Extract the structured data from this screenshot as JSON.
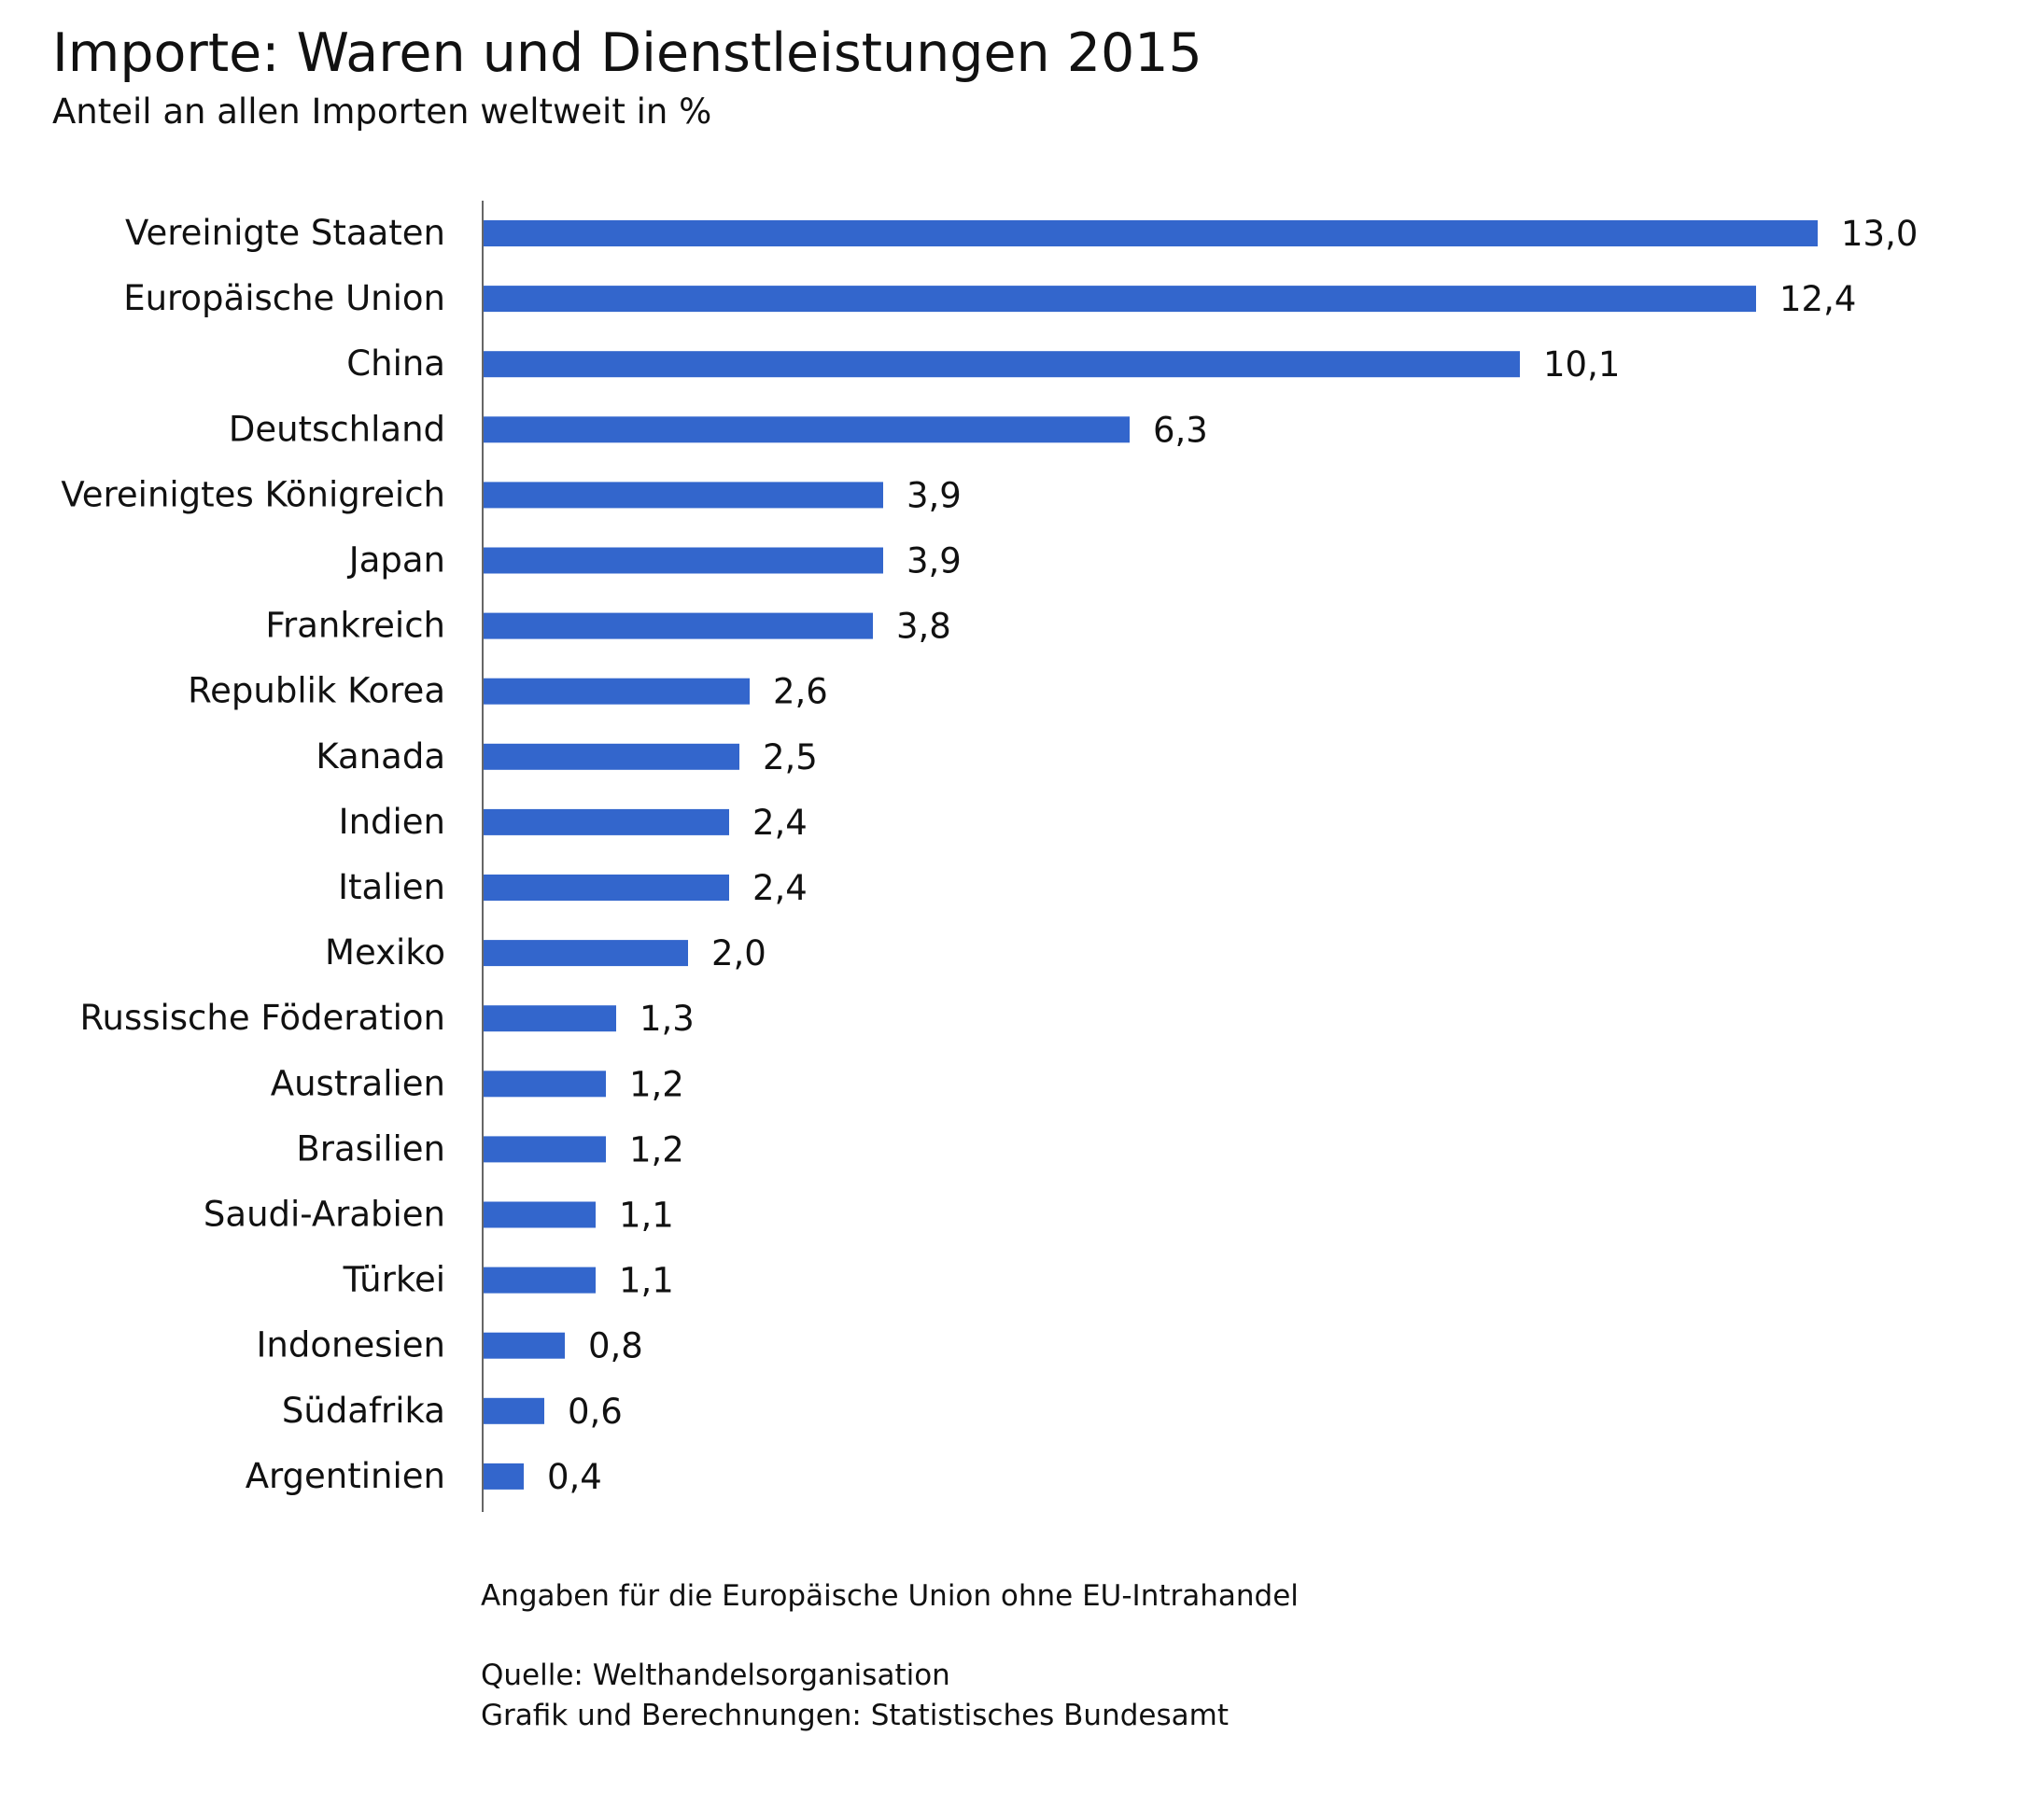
{
  "header": {
    "title": "Importe: Waren und Dienstleistungen 2015",
    "subtitle": "Anteil an allen Importen weltweit in %"
  },
  "footer": {
    "note": "Angaben für die Europäische Union ohne EU-Intrahandel",
    "source": "Quelle: Welthandelsorganisation",
    "credit": "Grafik und Berechnungen: Statistisches Bundesamt"
  },
  "colors": {
    "bar": "#3366cc",
    "axis": "#666666",
    "text": "#111111"
  },
  "chart_data": {
    "type": "bar",
    "orientation": "horizontal",
    "title": "Importe: Waren und Dienstleistungen 2015",
    "subtitle": "Anteil an allen Importen weltweit in %",
    "xlabel": "",
    "ylabel": "",
    "xlim": [
      0,
      13
    ],
    "grid": false,
    "categories": [
      "Vereinigte Staaten",
      "Europäische Union",
      "China",
      "Deutschland",
      "Vereinigtes Königreich",
      "Japan",
      "Frankreich",
      "Republik Korea",
      "Kanada",
      "Indien",
      "Italien",
      "Mexiko",
      "Russische Föderation",
      "Australien",
      "Brasilien",
      "Saudi-Arabien",
      "Türkei",
      "Indonesien",
      "Südafrika",
      "Argentinien"
    ],
    "values": [
      13.0,
      12.4,
      10.1,
      6.3,
      3.9,
      3.9,
      3.8,
      2.6,
      2.5,
      2.4,
      2.4,
      2.0,
      1.3,
      1.2,
      1.2,
      1.1,
      1.1,
      0.8,
      0.6,
      0.4
    ],
    "value_labels": [
      "13,0",
      "12,4",
      "10,1",
      "6,3",
      "3,9",
      "3,9",
      "3,8",
      "2,6",
      "2,5",
      "2,4",
      "2,4",
      "2,0",
      "1,3",
      "1,2",
      "1,2",
      "1,1",
      "1,1",
      "0,8",
      "0,6",
      "0,4"
    ]
  }
}
